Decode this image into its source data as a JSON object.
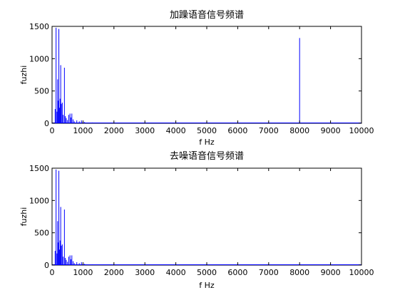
{
  "chart_data": [
    {
      "type": "bar",
      "title": "加躁语音信号频谱",
      "xlabel": "f Hz",
      "ylabel": "fuzhi",
      "xlim": [
        0,
        10000
      ],
      "ylim": [
        0,
        1500
      ],
      "xticks": [
        0,
        1000,
        2000,
        3000,
        4000,
        5000,
        6000,
        7000,
        8000,
        9000,
        10000
      ],
      "yticks": [
        0,
        500,
        1000,
        1500
      ],
      "grid": false,
      "color": "#0000ff",
      "x": [
        100,
        130,
        160,
        180,
        200,
        220,
        240,
        260,
        280,
        300,
        330,
        360,
        400,
        430,
        460,
        500,
        540,
        580,
        610,
        640,
        680,
        720,
        800,
        880,
        950,
        1050,
        1300,
        1600,
        2000,
        8000
      ],
      "values": [
        220,
        1480,
        180,
        680,
        350,
        1460,
        240,
        380,
        900,
        300,
        320,
        130,
        860,
        110,
        80,
        50,
        130,
        150,
        90,
        150,
        60,
        30,
        45,
        30,
        45,
        20,
        12,
        10,
        8,
        1320
      ]
    },
    {
      "type": "bar",
      "title": "去噪语音信号频谱",
      "xlabel": "f Hz",
      "ylabel": "fuzhi",
      "xlim": [
        0,
        10000
      ],
      "ylim": [
        0,
        1500
      ],
      "xticks": [
        0,
        1000,
        2000,
        3000,
        4000,
        5000,
        6000,
        7000,
        8000,
        9000,
        10000
      ],
      "yticks": [
        0,
        500,
        1000,
        1500
      ],
      "grid": false,
      "color": "#0000ff",
      "x": [
        100,
        130,
        160,
        180,
        200,
        220,
        240,
        260,
        280,
        300,
        330,
        360,
        400,
        430,
        460,
        500,
        540,
        580,
        610,
        640,
        680,
        720,
        800,
        880,
        950,
        1050,
        1300,
        1600,
        2000
      ],
      "values": [
        220,
        1480,
        180,
        680,
        350,
        1460,
        240,
        380,
        900,
        300,
        320,
        130,
        860,
        110,
        80,
        50,
        130,
        150,
        90,
        150,
        60,
        30,
        45,
        30,
        45,
        20,
        12,
        10,
        8
      ]
    }
  ]
}
